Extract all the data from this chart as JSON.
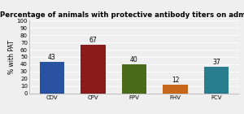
{
  "categories": [
    "CDV",
    "CPV",
    "FPV",
    "FHV",
    "FCV"
  ],
  "values": [
    43,
    67,
    40,
    12,
    37
  ],
  "bar_colors": [
    "#2952a3",
    "#8b1a1a",
    "#4a6b1a",
    "#c8671a",
    "#2a7d8c"
  ],
  "title": "Percentage of animals with protective antibody titers on admission",
  "ylabel": "% with PAT",
  "ylim": [
    0,
    100
  ],
  "yticks": [
    0,
    10,
    20,
    30,
    40,
    50,
    60,
    70,
    80,
    90,
    100
  ],
  "title_fontsize": 6.2,
  "axis_fontsize": 5.5,
  "tick_fontsize": 5.0,
  "label_fontsize": 5.5,
  "background_color": "#efefef"
}
